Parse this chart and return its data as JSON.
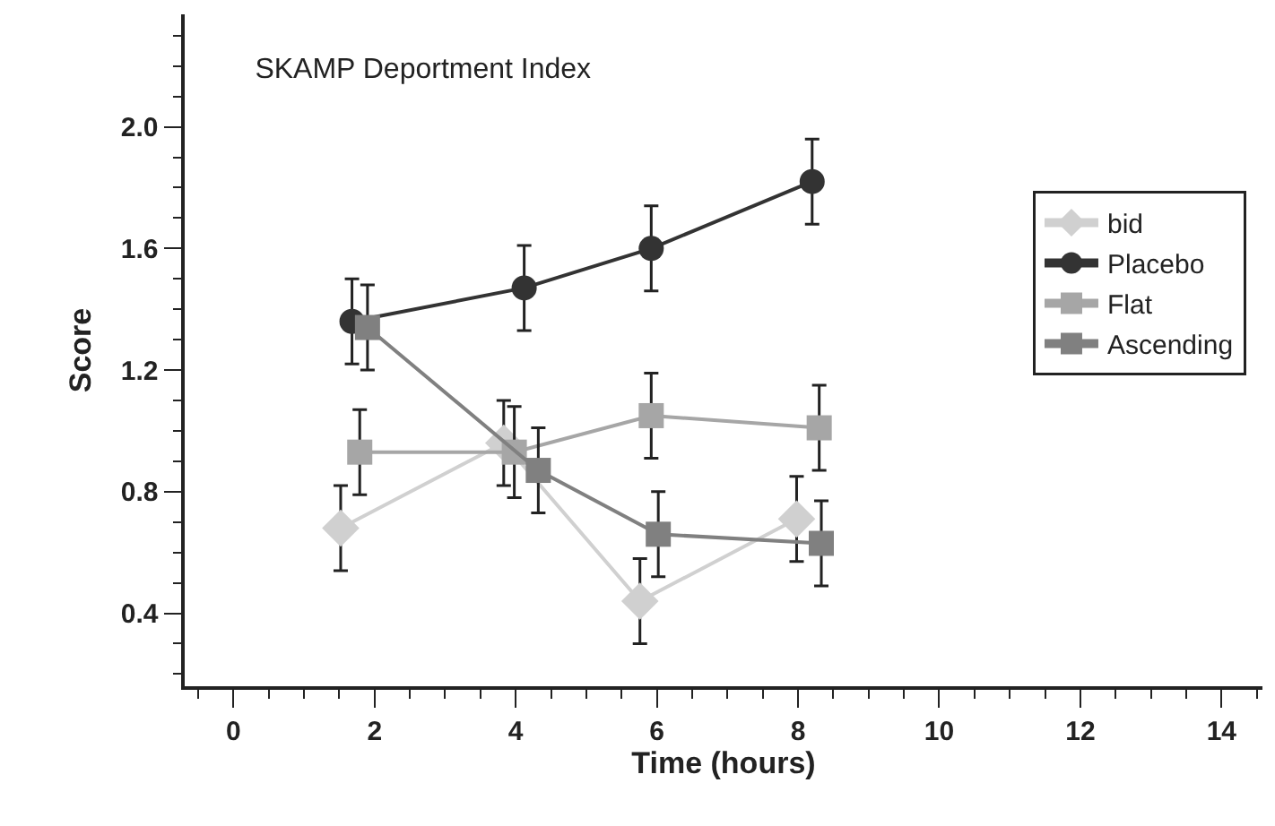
{
  "chart_data": {
    "type": "line",
    "title": "SKAMP Deportment Index",
    "xlabel": "Time (hours)",
    "ylabel": "Score",
    "series": [
      {
        "name": "bid",
        "color": "#d0d0d0",
        "marker": "diamond",
        "x": [
          1.52,
          3.83,
          5.76,
          7.98
        ],
        "values": [
          0.68,
          0.96,
          0.44,
          0.71
        ],
        "errors": [
          0.14,
          0.14,
          0.14,
          0.14
        ]
      },
      {
        "name": "Placebo",
        "color": "#333333",
        "marker": "circle",
        "x": [
          1.68,
          4.12,
          5.92,
          8.2
        ],
        "values": [
          1.36,
          1.47,
          1.6,
          1.82
        ],
        "errors": [
          0.14,
          0.14,
          0.14,
          0.14
        ]
      },
      {
        "name": "Flat",
        "color": "#a6a6a6",
        "marker": "square",
        "x": [
          1.79,
          3.98,
          5.92,
          8.3
        ],
        "values": [
          0.93,
          0.93,
          1.05,
          1.01
        ],
        "errors": [
          0.14,
          0.15,
          0.14,
          0.14
        ]
      },
      {
        "name": "Ascending",
        "color": "#808080",
        "marker": "square",
        "x": [
          1.9,
          4.32,
          6.02,
          8.33
        ],
        "values": [
          1.34,
          0.87,
          0.66,
          0.63
        ],
        "errors": [
          0.14,
          0.14,
          0.14,
          0.14
        ]
      }
    ],
    "xlim": [
      -0.69,
      14.58
    ],
    "xticks": [
      0,
      2,
      4,
      6,
      8,
      10,
      12,
      14
    ],
    "ylim": [
      0.16,
      2.37
    ],
    "yticks": [
      0.4,
      0.8,
      1.2,
      1.6,
      {
        "value": 2,
        "label": "2.0"
      }
    ],
    "legend": "right"
  }
}
